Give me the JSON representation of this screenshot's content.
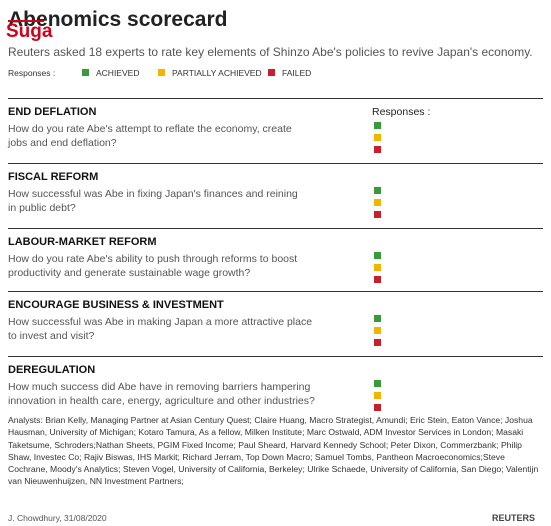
{
  "header": {
    "title_struck": "Abe",
    "title_rest": "nomics scorecard",
    "title_overlay": "Suga",
    "subtitle": "Reuters asked 18 experts to rate key elements of Shinzo Abe's policies to revive Japan's economy."
  },
  "legend": {
    "label": "Responses :",
    "items": [
      "ACHIEVED",
      "PARTIALLY ACHIEVED",
      "FAILED"
    ]
  },
  "column_header": "Responses :",
  "sections": [
    {
      "heading": "END DEFLATION",
      "question": [
        "How do you rate Abe's attempt to reflate the economy, create",
        "jobs and end deflation?"
      ]
    },
    {
      "heading": "FISCAL REFORM",
      "question": [
        "How successful was Abe in fixing Japan's finances and reining",
        "in public debt?"
      ]
    },
    {
      "heading": "LABOUR-MARKET REFORM",
      "question": [
        "How do you rate Abe's ability to push through reforms to boost",
        "productivity and generate sustainable wage growth?"
      ]
    },
    {
      "heading": "ENCOURAGE BUSINESS & INVESTMENT",
      "question": [
        "How successful was Abe in making Japan a more attractive place",
        "to invest and visit?"
      ]
    },
    {
      "heading": "DEREGULATION",
      "question": [
        "How much success did Abe have in removing barriers hampering",
        "innovation in health care, energy, agriculture and other industries?"
      ]
    }
  ],
  "analysts": "Analysts: Brian Kelly, Managing Partner at Asian Century Quest; Claire Huang, Macro Strategist, Amundi; Eric Stein, Eaton Vance; Joshua Hausman, University of Michigan; Kotaro Tamura, As a fellow, Milken Institute; Marc Ostwald, ADM Investor Services in London; Masaki Taketsume, Schroders;Nathan Sheets, PGIM Fixed Income; Paul Sheard, Harvard Kennedy School; Peter Dixon, Commerzbank; Philip Shaw, Investec Co; Rajiv Biswas, IHS Markit; Richard Jerram, Top Down Macro; Samuel Tombs, Pantheon Macroeconomics;Steve Cochrane, Moody's Analytics; Steven Vogel, University of California, Berkeley; Ulrike Schaede, University of California, San Diego; Valentijn van Nieuwenhuijzen, NN Investment Partners;",
  "footer": {
    "credit": "J. Chowdhury, 31/08/2020",
    "brand": "REUTERS"
  }
}
